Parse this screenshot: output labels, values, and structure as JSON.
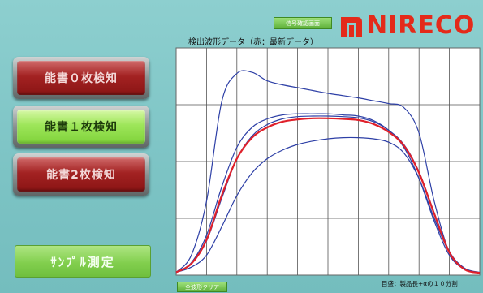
{
  "header": {
    "signal_button_label": "信号確認画面",
    "brand": "NIRECO"
  },
  "side_buttons": [
    {
      "label": "能書０枚検知",
      "state": "inactive"
    },
    {
      "label": "能書１枚検知",
      "state": "active"
    },
    {
      "label": "能書2枚検知",
      "state": "inactive"
    }
  ],
  "sample_button_label": "ｻﾝﾌﾟﾙ測定",
  "clear_button_label": "全波形クリア",
  "colors": {
    "background": "#7fc6c6",
    "active_green": "#9ee65a",
    "inactive_red": "#a32222",
    "brand_red": "#e42a1a",
    "wave_blue": "#2d3fa6",
    "wave_red": "#e0202a"
  },
  "chart_data": {
    "type": "line",
    "title": "検出波形データ（赤：最新データ）",
    "note": "目盛：製品長+αの１０分割",
    "x_divisions": 10,
    "y_divisions": 4,
    "ylim": [
      0,
      4
    ],
    "x": [
      0,
      0.5,
      1,
      1.5,
      2,
      2.5,
      3,
      3.5,
      4,
      4.5,
      5,
      5.5,
      6,
      6.5,
      7,
      7.5,
      8,
      8.5,
      9,
      9.5,
      10
    ],
    "series": [
      {
        "color": "#2d3fa6",
        "values": [
          0.05,
          0.35,
          1.3,
          3.05,
          3.55,
          3.57,
          3.42,
          3.35,
          3.3,
          3.25,
          3.2,
          3.16,
          3.12,
          3.07,
          3.02,
          2.95,
          2.5,
          1.3,
          0.4,
          0.12,
          0.05
        ]
      },
      {
        "color": "#2d3fa6",
        "values": [
          0.05,
          0.22,
          0.7,
          1.55,
          2.25,
          2.6,
          2.75,
          2.82,
          2.84,
          2.84,
          2.84,
          2.82,
          2.8,
          2.72,
          2.55,
          2.25,
          1.7,
          0.95,
          0.35,
          0.1,
          0.04
        ]
      },
      {
        "color": "#2d3fa6",
        "values": [
          0.05,
          0.2,
          0.6,
          1.35,
          2.05,
          2.45,
          2.65,
          2.75,
          2.79,
          2.8,
          2.8,
          2.79,
          2.77,
          2.7,
          2.55,
          2.3,
          1.82,
          1.1,
          0.42,
          0.12,
          0.04
        ]
      },
      {
        "color": "#2d3fa6",
        "values": [
          0.05,
          0.14,
          0.35,
          0.85,
          1.4,
          1.8,
          2.05,
          2.2,
          2.3,
          2.36,
          2.4,
          2.42,
          2.42,
          2.4,
          2.34,
          2.15,
          1.7,
          1.0,
          0.4,
          0.12,
          0.04
        ]
      },
      {
        "color": "#e0202a",
        "values": [
          0.05,
          0.2,
          0.62,
          1.4,
          2.05,
          2.42,
          2.6,
          2.7,
          2.74,
          2.76,
          2.76,
          2.75,
          2.73,
          2.66,
          2.52,
          2.28,
          1.8,
          1.08,
          0.4,
          0.1,
          0.04
        ]
      }
    ]
  }
}
